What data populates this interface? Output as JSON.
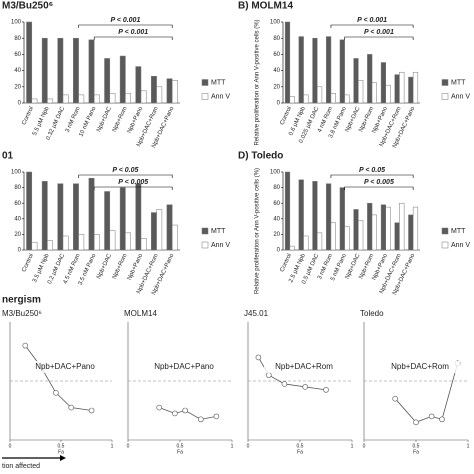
{
  "section_title": "nergism",
  "caption": "tion affected",
  "chart_data": [
    {
      "type": "bar",
      "title": "M3/Bu250⁶",
      "categories": [
        "Control",
        "5.5 µM Npb",
        "0.32 µM DAC",
        "3 nM Rom",
        "10 nM Pano",
        "Npb+DAC",
        "Npb+Rom",
        "Npb+Pano",
        "Npb+DAC+Rom",
        "Npb+DAC+Pano"
      ],
      "series": [
        {
          "name": "MTT",
          "color": "#5a5a5a",
          "values": [
            100,
            80,
            80,
            80,
            78,
            55,
            58,
            45,
            33,
            30
          ]
        },
        {
          "name": "Ann V",
          "color": "#ffffff",
          "values": [
            5,
            5,
            10,
            10,
            10,
            12,
            12,
            15,
            20,
            28
          ]
        }
      ],
      "ylim": [
        0,
        100
      ],
      "yticks": [
        0,
        20,
        40,
        60,
        80,
        100
      ],
      "annotations": [
        "P < 0.001",
        "P < 0.001"
      ]
    },
    {
      "type": "bar",
      "title": "B) MOLM14",
      "ylabel": "Relative proliferation or Ann V-positive cells (%)",
      "categories": [
        "Control",
        "0.6 µM Npb",
        "0.025 µM DAC",
        "4 nM Rom",
        "3.8 nM Pano",
        "Npb+DAC",
        "Npb+Rom",
        "Npb+Pano",
        "Npb+DAC+Rom",
        "Npb+DAC+Pano"
      ],
      "series": [
        {
          "name": "MTT",
          "color": "#5a5a5a",
          "values": [
            100,
            82,
            80,
            82,
            78,
            55,
            60,
            50,
            35,
            32
          ]
        },
        {
          "name": "Ann V",
          "color": "#ffffff",
          "values": [
            8,
            10,
            20,
            12,
            10,
            28,
            25,
            22,
            38,
            38
          ]
        }
      ],
      "ylim": [
        0,
        100
      ],
      "yticks": [
        0,
        20,
        40,
        60,
        80,
        100
      ],
      "annotations": [
        "P < 0.001",
        "P < 0.001"
      ]
    },
    {
      "type": "bar",
      "title": "01",
      "categories": [
        "Control",
        "3.5 µM Npb",
        "0.2 µM DAC",
        "4.5 nM Rom",
        "3.5 nM Pano",
        "Npb+DAC",
        "Npb+Rom",
        "Npb+Pano",
        "Npb+DAC+Rom",
        "Npb+DAC+Pano"
      ],
      "series": [
        {
          "name": "MTT",
          "color": "#5a5a5a",
          "values": [
            100,
            88,
            85,
            85,
            92,
            75,
            80,
            85,
            48,
            58
          ]
        },
        {
          "name": "Ann V",
          "color": "#ffffff",
          "values": [
            10,
            12,
            18,
            20,
            20,
            25,
            22,
            15,
            52,
            32
          ]
        }
      ],
      "ylim": [
        0,
        100
      ],
      "yticks": [
        0,
        20,
        40,
        60,
        80,
        100
      ],
      "annotations": [
        "P < 0.05",
        "P < 0.005"
      ]
    },
    {
      "type": "bar",
      "title": "D) Toledo",
      "ylabel": "Relative proliferation or Ann V-positive cells (%)",
      "categories": [
        "Control",
        "2.5 µM Npb",
        "0.5 µM DAC",
        "3 nM Rom",
        "5 nM Pano",
        "Npb+DAC",
        "Npb+Rom",
        "Npb+Pano",
        "Npb+DAC+Rom",
        "Npb+DAC+Pano"
      ],
      "series": [
        {
          "name": "MTT",
          "color": "#5a5a5a",
          "values": [
            100,
            90,
            88,
            85,
            80,
            52,
            60,
            58,
            35,
            45
          ]
        },
        {
          "name": "Ann V",
          "color": "#ffffff",
          "values": [
            5,
            18,
            22,
            35,
            30,
            38,
            45,
            55,
            60,
            55
          ]
        }
      ],
      "ylim": [
        0,
        100
      ],
      "yticks": [
        0,
        20,
        40,
        60,
        80,
        100
      ],
      "annotations": [
        "P < 0.05",
        "P < 0.005"
      ]
    },
    {
      "type": "scatter",
      "title": "M3/Bu250⁶",
      "annotation": "Npb+DAC+Pano",
      "xlabel": "Fa",
      "x": [
        0.15,
        0.3,
        0.45,
        0.6,
        0.8
      ],
      "y": [
        1.6,
        1.25,
        0.8,
        0.55,
        0.5
      ],
      "xlim": [
        0,
        1
      ],
      "ylim": [
        0,
        2
      ],
      "xticks": [
        0,
        0.5,
        1
      ]
    },
    {
      "type": "scatter",
      "title": "MOLM14",
      "annotation": "Npb+DAC+Pano",
      "xlabel": "Fa",
      "x": [
        0.3,
        0.45,
        0.55,
        0.7,
        0.85
      ],
      "y": [
        0.55,
        0.45,
        0.5,
        0.35,
        0.4
      ],
      "xlim": [
        0,
        1
      ],
      "ylim": [
        0,
        2
      ],
      "xticks": [
        0,
        0.5,
        1
      ]
    },
    {
      "type": "scatter",
      "title": "J45.01",
      "annotation": "Npb+DAC+Rom",
      "xlabel": "Fa",
      "x": [
        0.1,
        0.2,
        0.35,
        0.55,
        0.75
      ],
      "y": [
        1.4,
        1.1,
        0.95,
        0.9,
        0.85
      ],
      "xlim": [
        0,
        1
      ],
      "ylim": [
        0,
        2
      ],
      "xticks": [
        0,
        0.5,
        1
      ]
    },
    {
      "type": "scatter",
      "title": "Toledo",
      "annotation": "Npb+DAC+Rom",
      "xlabel": "Fa",
      "x": [
        0.3,
        0.5,
        0.65,
        0.75,
        0.9
      ],
      "y": [
        0.7,
        0.3,
        0.4,
        0.35,
        1.3
      ],
      "xlim": [
        0,
        1
      ],
      "ylim": [
        0,
        2
      ],
      "xticks": [
        0,
        0.5,
        1
      ]
    }
  ]
}
